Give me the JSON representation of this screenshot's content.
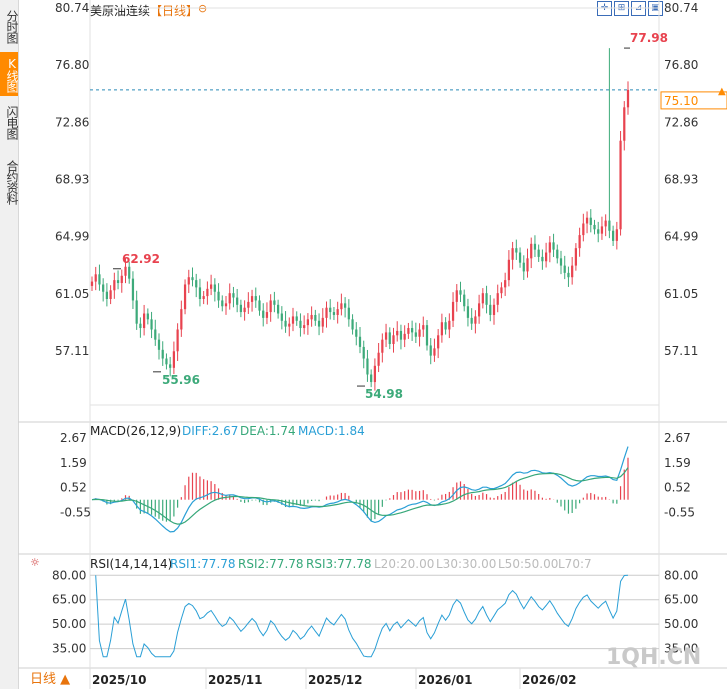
{
  "sidebar": {
    "tabs": [
      {
        "label": "分时图",
        "active": false
      },
      {
        "label": "K线图",
        "active": true
      },
      {
        "label": "闪电图",
        "active": false
      },
      {
        "label": "合约资料",
        "active": false
      }
    ]
  },
  "header": {
    "title": "美原油连续",
    "period_tag": "【日线】",
    "toolbar_icons": [
      "crosshair-icon",
      "fit-icon",
      "indicator-icon",
      "restore-icon",
      "settings-icon"
    ]
  },
  "period_button": {
    "label": "日线 ▲"
  },
  "watermark": "1QH.CN",
  "colors": {
    "up": "#e8434f",
    "down": "#3daa7a",
    "current_price": "#ff8a00",
    "diff_line": "#2a9fd6",
    "dea_line": "#36a779",
    "rsi_line": "#2a9fd6"
  },
  "chart_data": [
    {
      "type": "candlestick",
      "title": "美原油连续 【日线】",
      "y_ticks": [
        "80.74",
        "76.80",
        "72.86",
        "68.93",
        "64.99",
        "61.05",
        "57.11"
      ],
      "ylim": [
        53.4,
        80.74
      ],
      "x_ticks": [
        "2025/10",
        "2025/11",
        "2025/12",
        "2026/01",
        "2026/02"
      ],
      "current_price": 75.1,
      "annotations": {
        "high": "77.98",
        "low1": "55.96",
        "low2": "54.98",
        "high1": "62.92"
      },
      "closes": [
        61.9,
        62.4,
        61.7,
        61.2,
        60.7,
        61.3,
        62.0,
        61.8,
        62.3,
        62.92,
        62.1,
        60.6,
        59.0,
        58.7,
        59.7,
        59.3,
        58.6,
        57.9,
        57.2,
        56.6,
        56.2,
        55.96,
        57.1,
        58.6,
        60.0,
        61.7,
        62.2,
        62.0,
        61.5,
        60.7,
        60.9,
        61.4,
        61.7,
        61.2,
        60.6,
        60.2,
        60.4,
        61.1,
        60.8,
        60.3,
        59.8,
        60.1,
        60.5,
        60.9,
        60.6,
        59.9,
        59.4,
        59.8,
        60.6,
        60.3,
        59.7,
        59.2,
        58.8,
        59.0,
        59.5,
        59.2,
        58.7,
        58.9,
        59.3,
        59.6,
        59.2,
        58.8,
        59.4,
        60.1,
        59.8,
        59.6,
        60.0,
        60.4,
        60.1,
        59.3,
        58.6,
        58.1,
        57.4,
        56.6,
        55.5,
        54.98,
        56.1,
        57.0,
        57.9,
        58.4,
        57.6,
        58.2,
        58.5,
        57.9,
        58.3,
        58.7,
        58.4,
        58.1,
        58.6,
        58.9,
        57.5,
        56.8,
        57.3,
        58.2,
        59.1,
        58.6,
        59.2,
        60.5,
        61.3,
        61.0,
        60.2,
        59.4,
        59.0,
        59.5,
        60.4,
        61.1,
        60.3,
        59.6,
        60.3,
        61.1,
        61.5,
        62.0,
        63.4,
        64.2,
        63.9,
        63.2,
        62.6,
        63.5,
        64.5,
        64.1,
        63.6,
        63.3,
        63.9,
        64.6,
        64.1,
        63.5,
        63.0,
        62.5,
        62.2,
        63.0,
        64.2,
        65.1,
        65.9,
        66.3,
        65.8,
        65.5,
        65.2,
        65.7,
        66.1,
        65.4,
        64.7,
        65.5,
        71.6,
        73.9,
        75.1
      ],
      "highs": {
        "139": 77.98
      }
    },
    {
      "type": "line",
      "title": "MACD(26,12,9)",
      "series_labels": [
        "DIFF:2.67",
        "DEA:1.74",
        "MACD:1.84"
      ],
      "y_ticks": [
        "2.67",
        "1.59",
        "0.52",
        "-0.55"
      ],
      "ylim": [
        -2.4,
        3.2
      ]
    },
    {
      "type": "line",
      "title": "RSI(14,14,14)",
      "series_labels": [
        "RSI1:77.78",
        "RSI2:77.78",
        "RSI3:77.78",
        "L20:20.00",
        "L30:30.00",
        "L50:50.00",
        "L70:7"
      ],
      "y_ticks": [
        "80.00",
        "65.00",
        "50.00",
        "35.00"
      ],
      "ylim": [
        28,
        82
      ]
    }
  ]
}
